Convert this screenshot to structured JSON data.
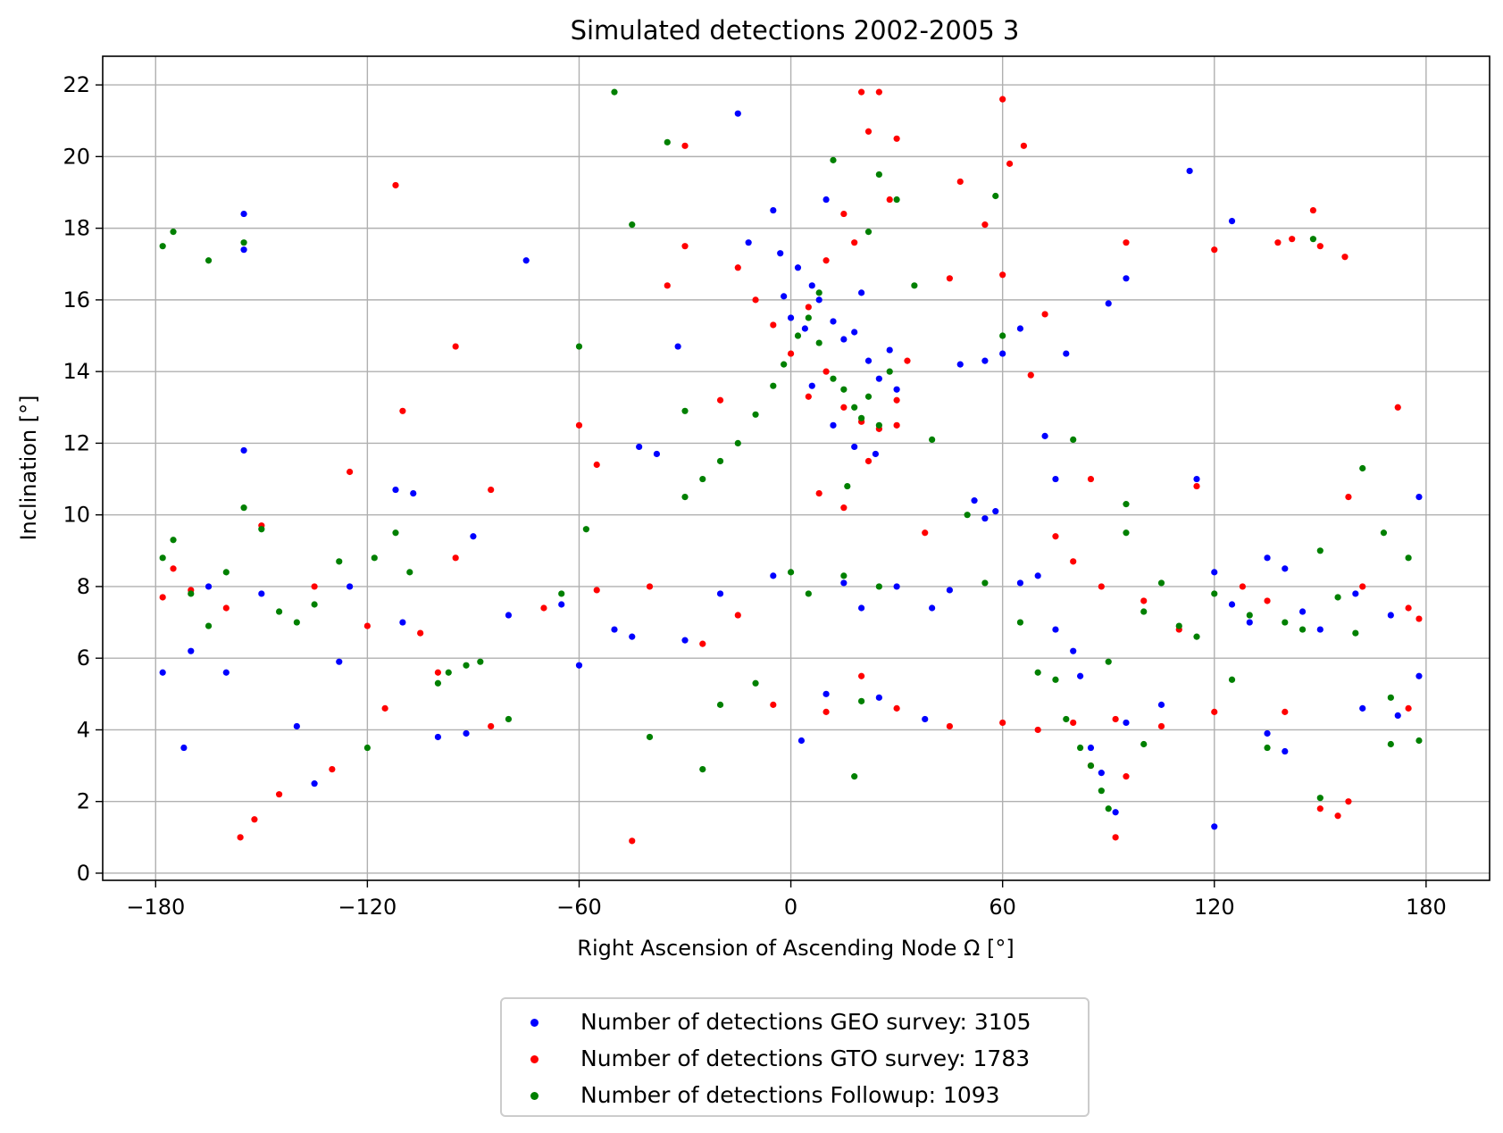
{
  "chart_data": {
    "type": "scatter",
    "title": "Simulated detections 2002-2005 3",
    "xlabel": "Right Ascension of Ascending Node Ω [°]",
    "ylabel": "Inclination [°]",
    "xlim": [
      -195,
      198
    ],
    "ylim": [
      -0.2,
      22.8
    ],
    "xticks": [
      -180,
      -120,
      -60,
      0,
      60,
      120,
      180
    ],
    "xtick_labels": [
      "−180",
      "−120",
      "−60",
      "0",
      "60",
      "120",
      "180"
    ],
    "yticks": [
      0,
      2,
      4,
      6,
      8,
      10,
      12,
      14,
      16,
      18,
      20,
      22
    ],
    "ytick_labels": [
      "0",
      "2",
      "4",
      "6",
      "8",
      "10",
      "12",
      "14",
      "16",
      "18",
      "20",
      "22"
    ],
    "grid": true,
    "legend_position": "below-center",
    "series": [
      {
        "name": "Number of detections GEO survey: 3105",
        "color": "#0000ff",
        "points": [
          [
            -155,
            18.4
          ],
          [
            -155,
            17.4
          ],
          [
            -155,
            11.8
          ],
          [
            -160,
            5.6
          ],
          [
            -172,
            3.5
          ],
          [
            -178,
            5.6
          ],
          [
            -140,
            4.1
          ],
          [
            -135,
            2.5
          ],
          [
            -128,
            5.9
          ],
          [
            -112,
            10.7
          ],
          [
            -107,
            10.6
          ],
          [
            -100,
            3.8
          ],
          [
            -92,
            3.9
          ],
          [
            -90,
            9.4
          ],
          [
            -75,
            17.1
          ],
          [
            -60,
            5.8
          ],
          [
            -45,
            6.6
          ],
          [
            -43,
            11.9
          ],
          [
            -38,
            11.7
          ],
          [
            -32,
            14.7
          ],
          [
            -15,
            21.2
          ],
          [
            -12,
            17.6
          ],
          [
            -5,
            18.5
          ],
          [
            -3,
            17.3
          ],
          [
            -2,
            16.1
          ],
          [
            0,
            15.5
          ],
          [
            2,
            16.9
          ],
          [
            4,
            15.2
          ],
          [
            6,
            16.4
          ],
          [
            8,
            16.0
          ],
          [
            10,
            18.8
          ],
          [
            12,
            15.4
          ],
          [
            15,
            14.9
          ],
          [
            18,
            15.1
          ],
          [
            20,
            16.2
          ],
          [
            22,
            14.3
          ],
          [
            25,
            13.8
          ],
          [
            28,
            14.6
          ],
          [
            30,
            13.5
          ],
          [
            24,
            11.7
          ],
          [
            18,
            11.9
          ],
          [
            12,
            12.5
          ],
          [
            6,
            13.6
          ],
          [
            3,
            3.7
          ],
          [
            10,
            5.0
          ],
          [
            25,
            4.9
          ],
          [
            38,
            4.3
          ],
          [
            48,
            14.2
          ],
          [
            55,
            14.3
          ],
          [
            60,
            14.5
          ],
          [
            65,
            15.2
          ],
          [
            72,
            12.2
          ],
          [
            75,
            11.0
          ],
          [
            78,
            14.5
          ],
          [
            90,
            15.9
          ],
          [
            95,
            16.6
          ],
          [
            113,
            19.6
          ],
          [
            125,
            18.2
          ],
          [
            115,
            11.0
          ],
          [
            120,
            8.4
          ],
          [
            125,
            7.5
          ],
          [
            130,
            7.0
          ],
          [
            135,
            8.8
          ],
          [
            140,
            8.5
          ],
          [
            145,
            7.3
          ],
          [
            150,
            6.8
          ],
          [
            160,
            7.8
          ],
          [
            170,
            7.2
          ],
          [
            178,
            10.5
          ],
          [
            178,
            5.5
          ],
          [
            172,
            4.4
          ],
          [
            162,
            4.6
          ],
          [
            140,
            3.4
          ],
          [
            135,
            3.9
          ],
          [
            120,
            1.3
          ],
          [
            105,
            4.7
          ],
          [
            95,
            4.2
          ],
          [
            92,
            1.7
          ],
          [
            88,
            2.8
          ],
          [
            85,
            3.5
          ],
          [
            82,
            5.5
          ],
          [
            80,
            6.2
          ],
          [
            75,
            6.8
          ],
          [
            70,
            8.3
          ],
          [
            65,
            8.1
          ],
          [
            58,
            10.1
          ],
          [
            55,
            9.9
          ],
          [
            52,
            10.4
          ],
          [
            45,
            7.9
          ],
          [
            40,
            7.4
          ],
          [
            30,
            8.0
          ],
          [
            20,
            7.4
          ],
          [
            15,
            8.1
          ],
          [
            -5,
            8.3
          ],
          [
            -20,
            7.8
          ],
          [
            -30,
            6.5
          ],
          [
            -50,
            6.8
          ],
          [
            -65,
            7.5
          ],
          [
            -80,
            7.2
          ],
          [
            -110,
            7.0
          ],
          [
            -125,
            8.0
          ],
          [
            -150,
            7.8
          ],
          [
            -165,
            8.0
          ],
          [
            -170,
            6.2
          ]
        ]
      },
      {
        "name": "Number of detections GTO survey: 1783",
        "color": "#ff0000",
        "points": [
          [
            -112,
            19.2
          ],
          [
            -95,
            14.7
          ],
          [
            -110,
            12.9
          ],
          [
            -125,
            11.2
          ],
          [
            -85,
            10.7
          ],
          [
            -60,
            12.5
          ],
          [
            -55,
            11.4
          ],
          [
            -45,
            0.9
          ],
          [
            -35,
            16.4
          ],
          [
            -30,
            20.3
          ],
          [
            -30,
            17.5
          ],
          [
            -20,
            13.2
          ],
          [
            -15,
            16.9
          ],
          [
            -10,
            16.0
          ],
          [
            -5,
            15.3
          ],
          [
            0,
            14.5
          ],
          [
            5,
            15.8
          ],
          [
            10,
            17.1
          ],
          [
            15,
            18.4
          ],
          [
            18,
            17.6
          ],
          [
            20,
            21.8
          ],
          [
            22,
            20.7
          ],
          [
            25,
            21.8
          ],
          [
            30,
            20.5
          ],
          [
            28,
            18.8
          ],
          [
            33,
            14.3
          ],
          [
            30,
            13.2
          ],
          [
            25,
            12.4
          ],
          [
            20,
            12.6
          ],
          [
            15,
            13.0
          ],
          [
            10,
            14.0
          ],
          [
            5,
            13.3
          ],
          [
            8,
            10.6
          ],
          [
            15,
            10.2
          ],
          [
            22,
            11.5
          ],
          [
            30,
            12.5
          ],
          [
            38,
            9.5
          ],
          [
            45,
            16.6
          ],
          [
            48,
            19.3
          ],
          [
            55,
            18.1
          ],
          [
            60,
            16.7
          ],
          [
            60,
            21.6
          ],
          [
            62,
            19.8
          ],
          [
            66,
            20.3
          ],
          [
            68,
            13.9
          ],
          [
            72,
            15.6
          ],
          [
            75,
            9.4
          ],
          [
            80,
            8.7
          ],
          [
            85,
            11.0
          ],
          [
            88,
            8.0
          ],
          [
            92,
            4.3
          ],
          [
            95,
            17.6
          ],
          [
            100,
            7.6
          ],
          [
            110,
            6.8
          ],
          [
            115,
            10.8
          ],
          [
            120,
            17.4
          ],
          [
            128,
            8.0
          ],
          [
            135,
            7.6
          ],
          [
            138,
            17.6
          ],
          [
            142,
            17.7
          ],
          [
            148,
            18.5
          ],
          [
            150,
            17.5
          ],
          [
            157,
            17.2
          ],
          [
            158,
            10.5
          ],
          [
            162,
            8.0
          ],
          [
            172,
            13.0
          ],
          [
            175,
            7.4
          ],
          [
            178,
            7.1
          ],
          [
            175,
            4.6
          ],
          [
            158,
            2.0
          ],
          [
            150,
            1.8
          ],
          [
            155,
            1.6
          ],
          [
            140,
            4.5
          ],
          [
            120,
            4.5
          ],
          [
            105,
            4.1
          ],
          [
            95,
            2.7
          ],
          [
            92,
            1.0
          ],
          [
            85,
            3.0
          ],
          [
            80,
            4.2
          ],
          [
            70,
            4.0
          ],
          [
            60,
            4.2
          ],
          [
            45,
            4.1
          ],
          [
            30,
            4.6
          ],
          [
            20,
            5.5
          ],
          [
            10,
            4.5
          ],
          [
            -5,
            4.7
          ],
          [
            -15,
            7.2
          ],
          [
            -25,
            6.4
          ],
          [
            -40,
            8.0
          ],
          [
            -55,
            7.9
          ],
          [
            -70,
            7.4
          ],
          [
            -85,
            4.1
          ],
          [
            -100,
            5.6
          ],
          [
            -115,
            4.6
          ],
          [
            -130,
            2.9
          ],
          [
            -145,
            2.2
          ],
          [
            -152,
            1.5
          ],
          [
            -156,
            1.0
          ],
          [
            -160,
            7.4
          ],
          [
            -170,
            7.9
          ],
          [
            -178,
            7.7
          ],
          [
            -175,
            8.5
          ],
          [
            -150,
            9.7
          ],
          [
            -135,
            8.0
          ],
          [
            -120,
            6.9
          ],
          [
            -105,
            6.7
          ],
          [
            -95,
            8.8
          ]
        ]
      },
      {
        "name": "Number of detections Followup: 1093",
        "color": "#008000",
        "points": [
          [
            -178,
            17.5
          ],
          [
            -175,
            17.9
          ],
          [
            -165,
            17.1
          ],
          [
            -155,
            17.6
          ],
          [
            -178,
            8.8
          ],
          [
            -175,
            9.3
          ],
          [
            -170,
            7.8
          ],
          [
            -165,
            6.9
          ],
          [
            -160,
            8.4
          ],
          [
            -155,
            10.2
          ],
          [
            -150,
            9.6
          ],
          [
            -145,
            7.3
          ],
          [
            -140,
            7.0
          ],
          [
            -135,
            7.5
          ],
          [
            -128,
            8.7
          ],
          [
            -120,
            3.5
          ],
          [
            -118,
            8.8
          ],
          [
            -112,
            9.5
          ],
          [
            -108,
            8.4
          ],
          [
            -100,
            5.3
          ],
          [
            -97,
            5.6
          ],
          [
            -92,
            5.8
          ],
          [
            -88,
            5.9
          ],
          [
            -80,
            4.3
          ],
          [
            -65,
            7.8
          ],
          [
            -60,
            14.7
          ],
          [
            -58,
            9.6
          ],
          [
            -50,
            21.8
          ],
          [
            -45,
            18.1
          ],
          [
            -40,
            3.8
          ],
          [
            -35,
            20.4
          ],
          [
            -30,
            12.9
          ],
          [
            -30,
            10.5
          ],
          [
            -25,
            11.0
          ],
          [
            -20,
            11.5
          ],
          [
            -15,
            12.0
          ],
          [
            -10,
            12.8
          ],
          [
            -5,
            13.6
          ],
          [
            -2,
            14.2
          ],
          [
            2,
            15.0
          ],
          [
            5,
            15.5
          ],
          [
            8,
            14.8
          ],
          [
            12,
            13.8
          ],
          [
            15,
            13.5
          ],
          [
            18,
            13.0
          ],
          [
            20,
            12.7
          ],
          [
            22,
            13.3
          ],
          [
            25,
            12.5
          ],
          [
            28,
            14.0
          ],
          [
            30,
            18.8
          ],
          [
            25,
            19.5
          ],
          [
            22,
            17.9
          ],
          [
            12,
            19.9
          ],
          [
            8,
            16.2
          ],
          [
            16,
            10.8
          ],
          [
            20,
            4.8
          ],
          [
            18,
            2.7
          ],
          [
            -25,
            2.9
          ],
          [
            -20,
            4.7
          ],
          [
            -10,
            5.3
          ],
          [
            0,
            8.4
          ],
          [
            5,
            7.8
          ],
          [
            15,
            8.3
          ],
          [
            25,
            8.0
          ],
          [
            35,
            16.4
          ],
          [
            40,
            12.1
          ],
          [
            50,
            10.0
          ],
          [
            55,
            8.1
          ],
          [
            58,
            18.9
          ],
          [
            60,
            15.0
          ],
          [
            65,
            7.0
          ],
          [
            70,
            5.6
          ],
          [
            75,
            5.4
          ],
          [
            78,
            4.3
          ],
          [
            80,
            12.1
          ],
          [
            82,
            3.5
          ],
          [
            85,
            3.0
          ],
          [
            88,
            2.3
          ],
          [
            90,
            1.8
          ],
          [
            95,
            10.3
          ],
          [
            95,
            9.5
          ],
          [
            100,
            7.3
          ],
          [
            105,
            8.1
          ],
          [
            110,
            6.9
          ],
          [
            115,
            6.6
          ],
          [
            120,
            7.8
          ],
          [
            125,
            5.4
          ],
          [
            130,
            7.2
          ],
          [
            135,
            3.5
          ],
          [
            140,
            7.0
          ],
          [
            145,
            6.8
          ],
          [
            148,
            17.7
          ],
          [
            150,
            9.0
          ],
          [
            155,
            7.7
          ],
          [
            160,
            6.7
          ],
          [
            162,
            11.3
          ],
          [
            168,
            9.5
          ],
          [
            170,
            3.6
          ],
          [
            175,
            8.8
          ],
          [
            178,
            3.7
          ],
          [
            170,
            4.9
          ],
          [
            150,
            2.1
          ],
          [
            100,
            3.6
          ],
          [
            90,
            5.9
          ]
        ]
      }
    ]
  }
}
